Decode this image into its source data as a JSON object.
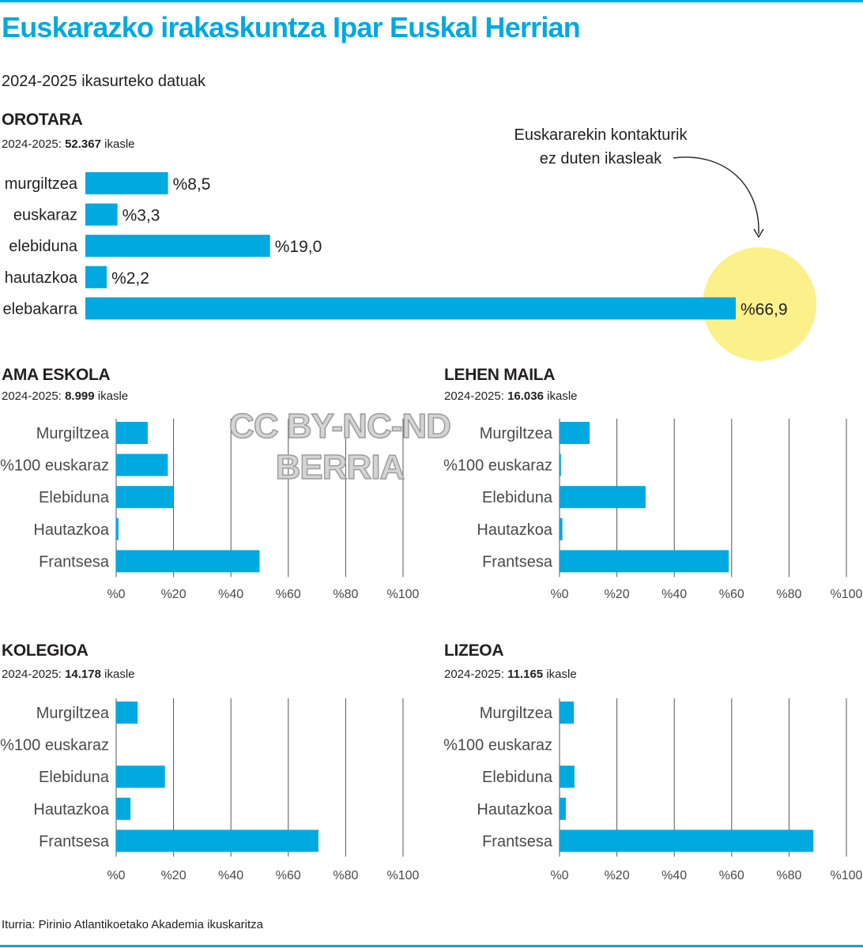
{
  "title": "Euskarazko irakaskuntza Ipar Euskal Herrian",
  "subtitle": "2024-2025 ikasurteko datuak",
  "source": "Iturria: Pirinio Atlantikoetako Akademia ikuskaritza",
  "watermark": {
    "line1": "CC BY-NC-ND",
    "line2": "BERRIA"
  },
  "colors": {
    "bar": "#00a9e0",
    "highlight": "#fbf08a",
    "title": "#00a9e0",
    "grid": "#555555"
  },
  "sections": {
    "orotara": {
      "title": "OROTARA",
      "year_label": "2024-2025:",
      "count": "52.367",
      "unit": "ikasle"
    },
    "ama_eskola": {
      "title": "AMA ESKOLA",
      "year_label": "2024-2025:",
      "count": "8.999",
      "unit": "ikasle"
    },
    "lehen_maila": {
      "title": "LEHEN MAILA",
      "year_label": "2024-2025:",
      "count": "16.036",
      "unit": "ikasle"
    },
    "kolegioa": {
      "title": "KOLEGIOA",
      "year_label": "2024-2025:",
      "count": "14.178",
      "unit": "ikasle"
    },
    "lizeoa": {
      "title": "LIZEOA",
      "year_label": "2024-2025:",
      "count": "11.165",
      "unit": "ikasle"
    }
  },
  "annotation": {
    "line1": "Euskararekin kontakturik",
    "line2": "ez duten ikasleak"
  },
  "chart_data": [
    {
      "type": "bar",
      "orientation": "horizontal",
      "id": "orotara",
      "title": "OROTARA",
      "categories": [
        "murgiltzea",
        "euskaraz",
        "elebiduna",
        "hautazkoa",
        "elebakarra"
      ],
      "values": [
        8.5,
        3.3,
        19.0,
        2.2,
        66.9
      ],
      "labels": [
        "%8,5",
        "%3,3",
        "%19,0",
        "%2,2",
        "%66,9"
      ],
      "xlim": [
        0,
        66.9
      ],
      "highlight": "elebakarra"
    },
    {
      "type": "bar",
      "orientation": "horizontal",
      "id": "ama_eskola",
      "title": "AMA ESKOLA",
      "categories": [
        "Murgiltzea",
        "%100 euskaraz",
        "Elebiduna",
        "Hautazkoa",
        "Frantsesa"
      ],
      "values": [
        11,
        18,
        20,
        0.8,
        50
      ],
      "xticks": [
        "%0",
        "%20",
        "%40",
        "%60",
        "%80",
        "%100"
      ],
      "xlim": [
        0,
        100
      ],
      "grid": true
    },
    {
      "type": "bar",
      "orientation": "horizontal",
      "id": "lehen_maila",
      "title": "LEHEN MAILA",
      "categories": [
        "Murgiltzea",
        "%100 euskaraz",
        "Elebiduna",
        "Hautazkoa",
        "Frantsesa"
      ],
      "values": [
        10.5,
        0.5,
        30,
        1,
        59
      ],
      "xticks": [
        "%0",
        "%20",
        "%40",
        "%60",
        "%80",
        "%100"
      ],
      "xlim": [
        0,
        100
      ],
      "grid": true
    },
    {
      "type": "bar",
      "orientation": "horizontal",
      "id": "kolegioa",
      "title": "KOLEGIOA",
      "categories": [
        "Murgiltzea",
        "%100 euskaraz",
        "Elebiduna",
        "Hautazkoa",
        "Frantsesa"
      ],
      "values": [
        7.5,
        0,
        17,
        5,
        70.5
      ],
      "xticks": [
        "%0",
        "%20",
        "%40",
        "%60",
        "%80",
        "%100"
      ],
      "xlim": [
        0,
        100
      ],
      "grid": true
    },
    {
      "type": "bar",
      "orientation": "horizontal",
      "id": "lizeoa",
      "title": "LIZEOA",
      "categories": [
        "Murgiltzea",
        "%100 euskaraz",
        "Elebiduna",
        "Hautazkoa",
        "Frantsesa"
      ],
      "values": [
        5,
        0,
        5.2,
        2.2,
        88.5
      ],
      "xticks": [
        "%0",
        "%20",
        "%40",
        "%60",
        "%80",
        "%100"
      ],
      "xlim": [
        0,
        100
      ],
      "grid": true
    }
  ]
}
